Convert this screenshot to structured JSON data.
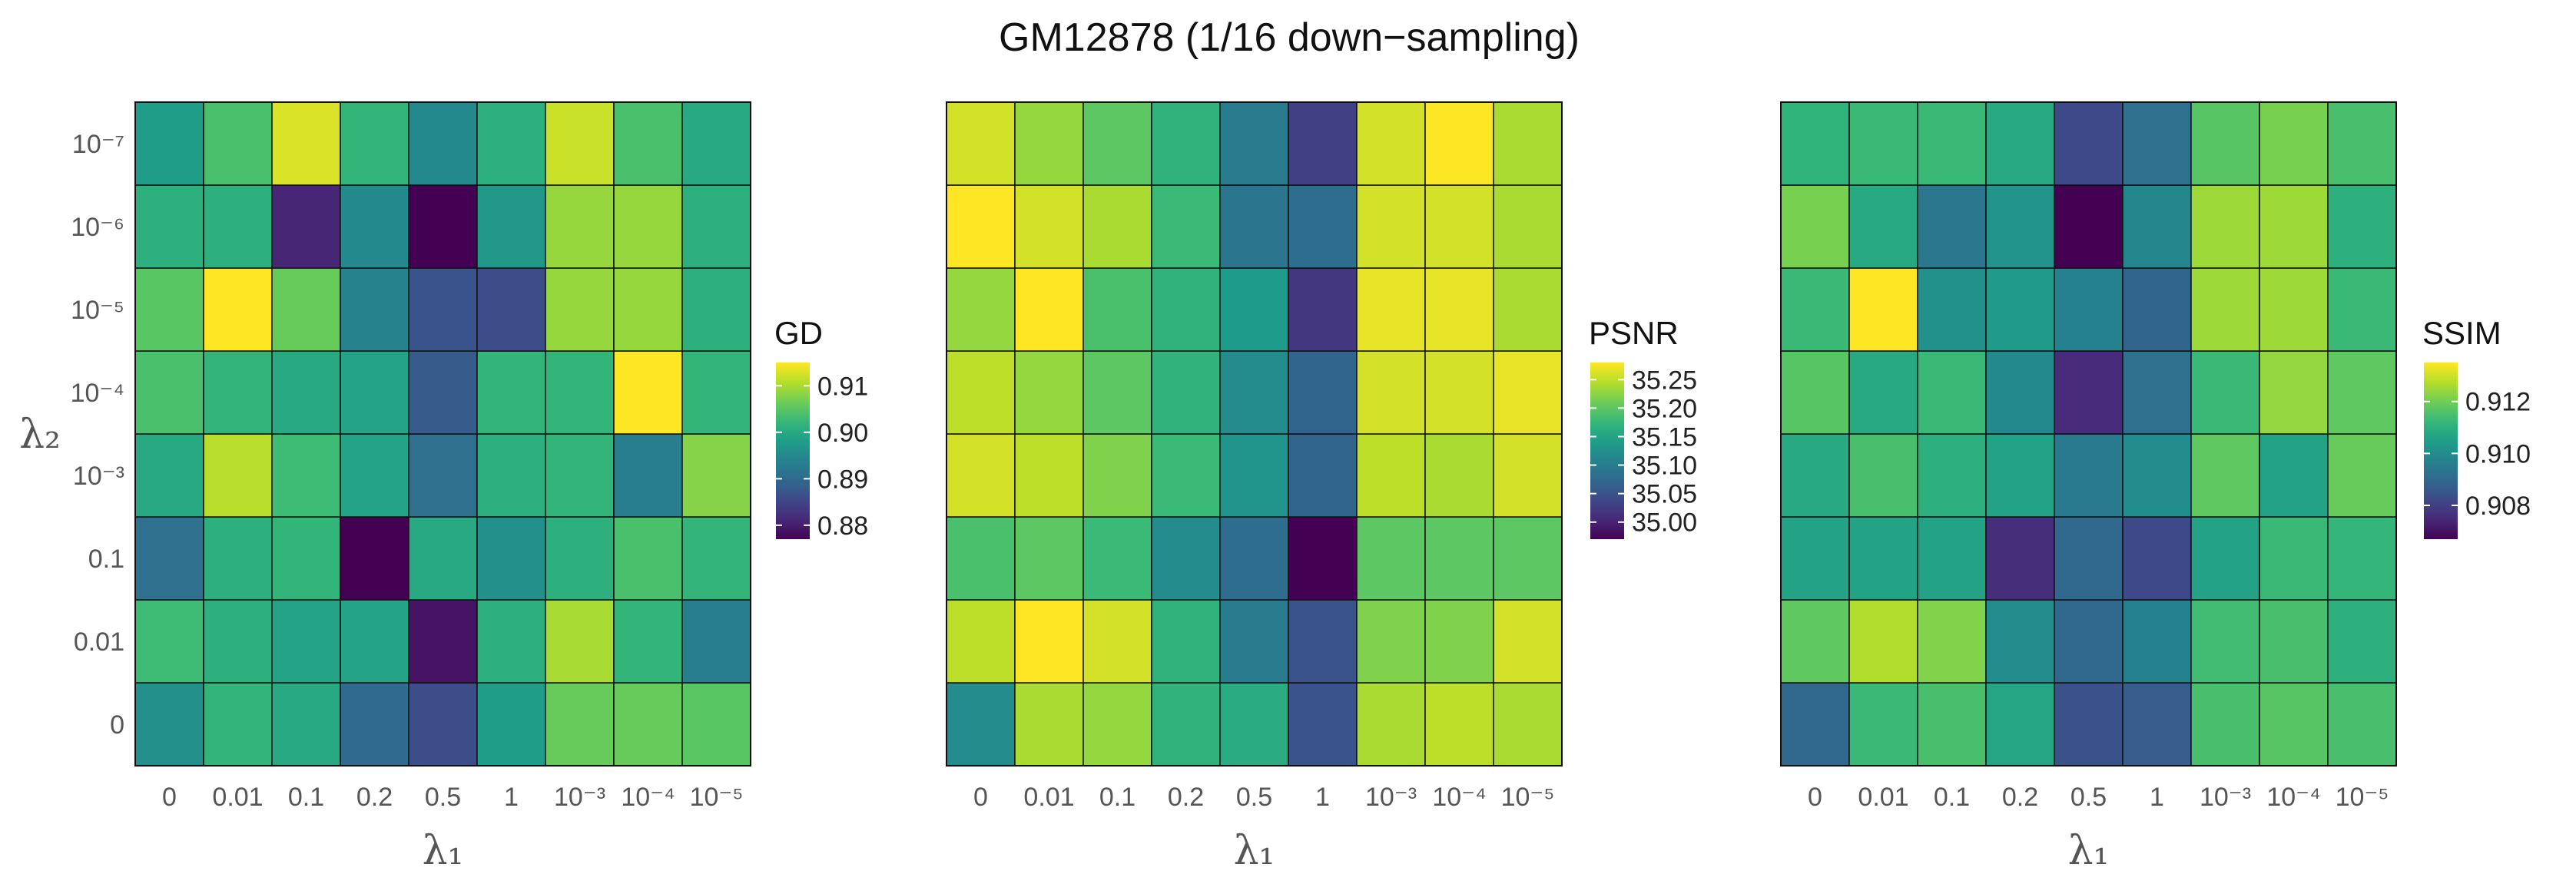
{
  "chart_data": {
    "title": "GM12878 (1/16 down−sampling)",
    "x_categories": [
      "0",
      "0.01",
      "0.1",
      "0.2",
      "0.5",
      "1",
      "10⁻³",
      "10⁻⁴",
      "10⁻⁵"
    ],
    "y_categories": [
      "0",
      "0.01",
      "0.1",
      "10⁻³",
      "10⁻⁴",
      "10⁻⁵",
      "10⁻⁶",
      "10⁻⁷"
    ],
    "x_label": "λ₁",
    "y_label": "λ₂",
    "colormap": "viridis",
    "colormap_stops": [
      "#440154",
      "#482878",
      "#3e4989",
      "#31688e",
      "#26828e",
      "#1f9e89",
      "#35b779",
      "#6ece58",
      "#b5de2b",
      "#fde725"
    ],
    "panels": [
      {
        "type": "heatmap",
        "legend_title": "GD",
        "range": [
          0.877,
          0.915
        ],
        "legend_ticks": [
          0.88,
          0.89,
          0.9,
          0.91
        ],
        "legend_tick_labels": [
          "0.88",
          "0.89",
          "0.90",
          "0.91"
        ],
        "rows": [
          [
            0.896,
            0.902,
            0.9,
            0.89,
            0.886,
            0.898,
            0.906,
            0.906,
            0.905
          ],
          [
            0.903,
            0.901,
            0.899,
            0.899,
            0.879,
            0.901,
            0.91,
            0.902,
            0.893
          ],
          [
            0.891,
            0.901,
            0.902,
            0.877,
            0.9,
            0.896,
            0.901,
            0.904,
            0.902
          ],
          [
            0.9,
            0.911,
            0.903,
            0.899,
            0.891,
            0.901,
            0.902,
            0.893,
            0.908
          ],
          [
            0.904,
            0.902,
            0.9,
            0.899,
            0.888,
            0.902,
            0.902,
            0.915,
            0.902
          ],
          [
            0.905,
            0.915,
            0.906,
            0.894,
            0.887,
            0.886,
            0.909,
            0.909,
            0.901
          ],
          [
            0.901,
            0.901,
            0.881,
            0.895,
            0.877,
            0.897,
            0.909,
            0.909,
            0.901
          ],
          [
            0.898,
            0.904,
            0.913,
            0.902,
            0.895,
            0.901,
            0.912,
            0.904,
            0.9
          ]
        ]
      },
      {
        "type": "heatmap",
        "legend_title": "PSNR",
        "range": [
          34.97,
          35.28
        ],
        "legend_ticks": [
          35.0,
          35.05,
          35.1,
          35.15,
          35.2,
          35.25
        ],
        "legend_tick_labels": [
          "35.00",
          "35.05",
          "35.10",
          "35.15",
          "35.20",
          "35.25"
        ],
        "rows": [
          [
            35.12,
            35.24,
            35.23,
            35.17,
            35.16,
            35.05,
            35.24,
            35.25,
            35.24
          ],
          [
            35.25,
            35.28,
            35.26,
            35.17,
            35.1,
            35.05,
            35.22,
            35.22,
            35.26
          ],
          [
            35.19,
            35.2,
            35.18,
            35.12,
            35.08,
            34.97,
            35.2,
            35.2,
            35.2
          ],
          [
            35.26,
            35.25,
            35.22,
            35.18,
            35.13,
            35.07,
            35.25,
            35.24,
            35.26
          ],
          [
            35.25,
            35.23,
            35.2,
            35.17,
            35.12,
            35.07,
            35.26,
            35.26,
            35.27
          ],
          [
            35.23,
            35.28,
            35.19,
            35.17,
            35.14,
            35.02,
            35.27,
            35.27,
            35.24
          ],
          [
            35.28,
            35.26,
            35.24,
            35.18,
            35.09,
            35.08,
            35.26,
            35.26,
            35.24
          ],
          [
            35.26,
            35.23,
            35.2,
            35.17,
            35.1,
            35.03,
            35.26,
            35.28,
            35.24
          ]
        ]
      },
      {
        "type": "heatmap",
        "legend_title": "SSIM",
        "range": [
          0.9067,
          0.9135
        ],
        "legend_ticks": [
          0.908,
          0.91,
          0.912
        ],
        "legend_tick_labels": [
          "0.908",
          "0.910",
          "0.912"
        ],
        "rows": [
          [
            0.909,
            0.9113,
            0.9115,
            0.9107,
            0.9084,
            0.9087,
            0.9115,
            0.9117,
            0.9115
          ],
          [
            0.9118,
            0.9127,
            0.9122,
            0.91,
            0.909,
            0.9097,
            0.9114,
            0.9115,
            0.911
          ],
          [
            0.9106,
            0.9106,
            0.9106,
            0.9076,
            0.909,
            0.9082,
            0.9106,
            0.9113,
            0.9112
          ],
          [
            0.9108,
            0.9115,
            0.911,
            0.9106,
            0.9095,
            0.91,
            0.9118,
            0.9106,
            0.9119
          ],
          [
            0.9117,
            0.9108,
            0.9113,
            0.9099,
            0.9075,
            0.9092,
            0.9113,
            0.9124,
            0.9118
          ],
          [
            0.9113,
            0.9135,
            0.9101,
            0.9104,
            0.9097,
            0.9089,
            0.9125,
            0.9125,
            0.9113
          ],
          [
            0.9121,
            0.9108,
            0.9094,
            0.9102,
            0.9067,
            0.9098,
            0.9125,
            0.9125,
            0.911
          ],
          [
            0.9111,
            0.9113,
            0.9113,
            0.9108,
            0.9082,
            0.9092,
            0.9117,
            0.9121,
            0.9115
          ]
        ]
      }
    ]
  }
}
